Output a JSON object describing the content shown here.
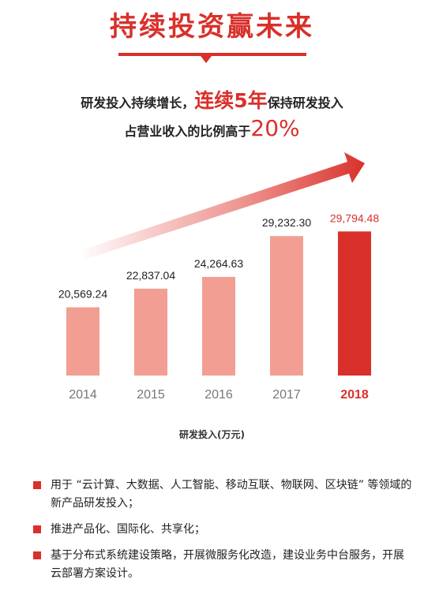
{
  "header": {
    "title": "持续投资赢未来",
    "line1_pre": "研发投入持续增长，",
    "line1_hl": "连续5年",
    "line1_post": "保持研发投入",
    "line2_pre": "占营业收入的比例高于",
    "line2_hl": "20%"
  },
  "colors": {
    "accent": "#d9302b",
    "bar": "#f29e93",
    "bar_highlight": "#d9302b",
    "text": "#222222"
  },
  "chart_data": {
    "type": "bar",
    "categories": [
      "2014",
      "2015",
      "2016",
      "2017",
      "2018"
    ],
    "values": [
      20569.24,
      22837.04,
      24264.63,
      29232.3,
      29794.48
    ],
    "data_labels": [
      "20,569.24",
      "22,837.04",
      "24,264.63",
      "29,232.30",
      "29,794.48"
    ],
    "highlight_index": 4,
    "xlabel": "研发投入(万元)",
    "ylabel": "",
    "title": "",
    "grid": false,
    "legend": "none"
  },
  "bullets": [
    {
      "text": "用于 “云计算、大数据、人工智能、移动互联、物联网、区块链” 等领域的新产品研发投入；"
    },
    {
      "text": "推进产品化、国际化、共享化；"
    },
    {
      "text": "基于分布式系统建设策略，开展微服务化改造，建设业务中台服务，开展云部署方案设计。"
    }
  ]
}
